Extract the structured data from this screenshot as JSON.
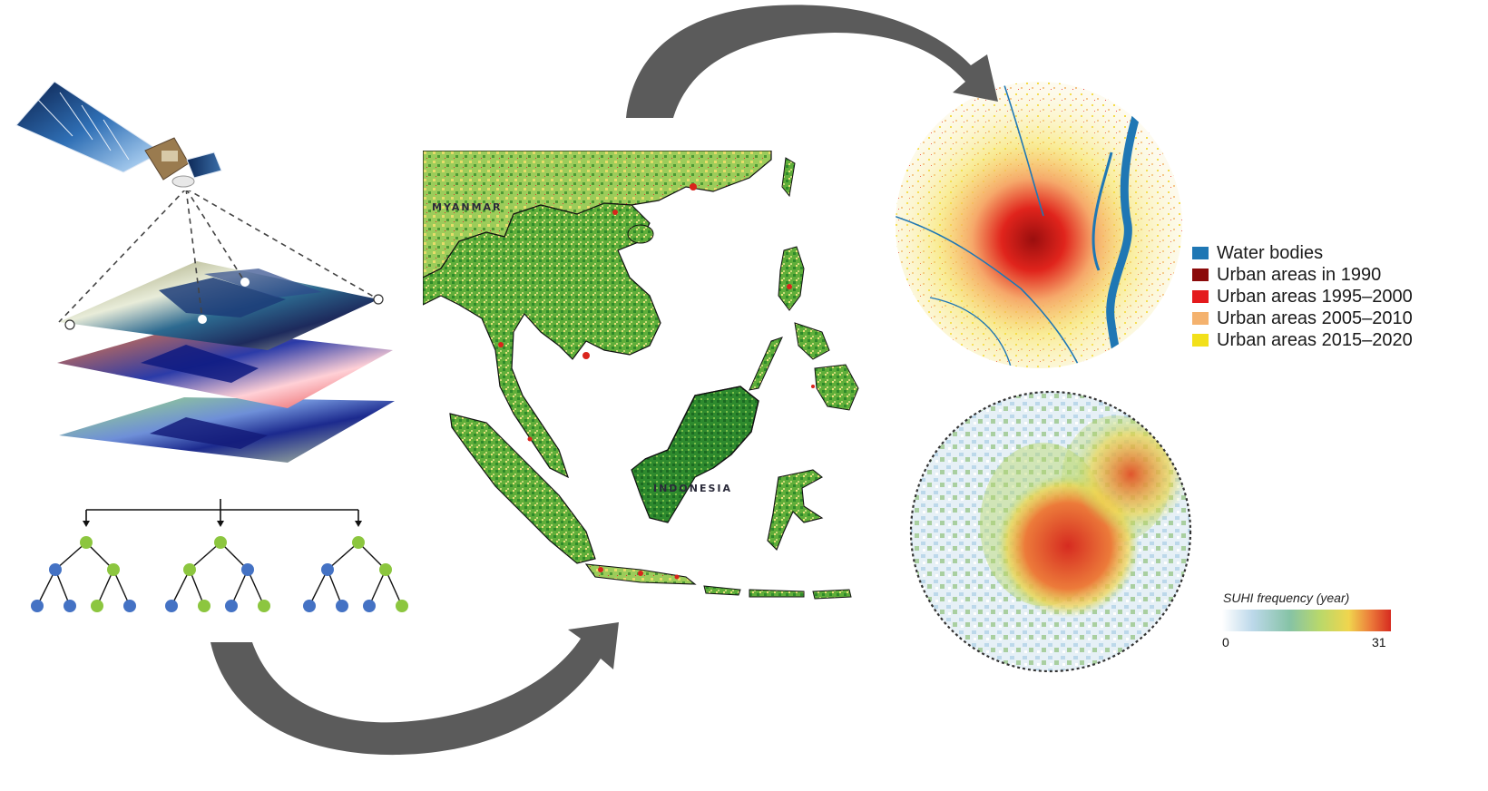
{
  "map": {
    "labels": [
      "MYANMAR",
      "INDONESIA"
    ]
  },
  "urban_legend": {
    "items": [
      {
        "label": "Water bodies",
        "color": "#1f77b4"
      },
      {
        "label": "Urban areas in 1990",
        "color": "#8b0a0a"
      },
      {
        "label": "Urban areas 1995–2000",
        "color": "#e41a1c"
      },
      {
        "label": "Urban areas 2005–2010",
        "color": "#f4b26e"
      },
      {
        "label": "Urban areas 2015–2020",
        "color": "#f2e01a"
      }
    ]
  },
  "suhi_scale": {
    "title": "SUHI frequency (year)",
    "min_label": "0",
    "max_label": "31",
    "colors": [
      "#ffffff",
      "#bcd8ea",
      "#86c3a6",
      "#b9d86a",
      "#f0d54e",
      "#ec7b3a",
      "#d62b20"
    ]
  },
  "tree_colors": {
    "blue": "#4472c4",
    "green": "#8cc63f"
  },
  "arrow_color": "#5b5b5b"
}
